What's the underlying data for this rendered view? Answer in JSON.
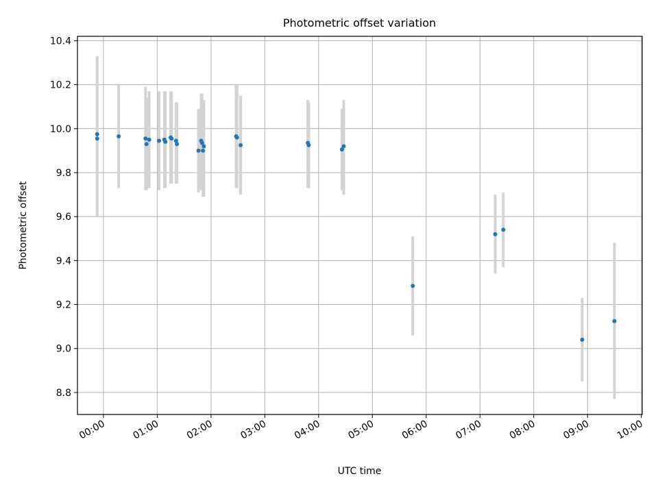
{
  "chart_data": {
    "type": "scatter",
    "title": "Photometric offset variation",
    "xlabel": "UTC time",
    "ylabel": "Photometric offset",
    "xlim": [
      "23:31",
      "10:01"
    ],
    "ylim": [
      8.7,
      10.42
    ],
    "x_ticks": [
      "00:00",
      "01:00",
      "02:00",
      "03:00",
      "04:00",
      "05:00",
      "06:00",
      "07:00",
      "08:00",
      "09:00",
      "10:00"
    ],
    "y_ticks": [
      "8.8",
      "9.0",
      "9.2",
      "9.4",
      "9.6",
      "9.8",
      "10.0",
      "10.2",
      "10.4"
    ],
    "grid": true,
    "marker_color": "#1f77b4",
    "errorbar_color": "#d3d3d3",
    "points": [
      {
        "x": "23:53",
        "y": 9.975,
        "err_low": 9.6,
        "err_high": 10.33
      },
      {
        "x": "23:53",
        "y": 9.955,
        "err_low": 9.6,
        "err_high": 10.33
      },
      {
        "x": "00:17",
        "y": 9.965,
        "err_low": 9.73,
        "err_high": 10.2
      },
      {
        "x": "00:47",
        "y": 9.955,
        "err_low": 9.72,
        "err_high": 10.19
      },
      {
        "x": "00:48",
        "y": 9.93,
        "err_low": 9.72,
        "err_high": 10.14
      },
      {
        "x": "00:51",
        "y": 9.95,
        "err_low": 9.73,
        "err_high": 10.17
      },
      {
        "x": "01:02",
        "y": 9.945,
        "err_low": 9.72,
        "err_high": 10.17
      },
      {
        "x": "01:08",
        "y": 9.95,
        "err_low": 9.73,
        "err_high": 10.17
      },
      {
        "x": "01:09",
        "y": 9.94,
        "err_low": 9.73,
        "err_high": 10.17
      },
      {
        "x": "01:15",
        "y": 9.96,
        "err_low": 9.75,
        "err_high": 10.17
      },
      {
        "x": "01:16",
        "y": 9.955,
        "err_low": 9.75,
        "err_high": 10.17
      },
      {
        "x": "01:21",
        "y": 9.945,
        "err_low": 9.75,
        "err_high": 10.12
      },
      {
        "x": "01:22",
        "y": 9.93,
        "err_low": 9.75,
        "err_high": 10.12
      },
      {
        "x": "01:46",
        "y": 9.9,
        "err_low": 9.71,
        "err_high": 10.09
      },
      {
        "x": "01:49",
        "y": 9.945,
        "err_low": 9.72,
        "err_high": 10.16
      },
      {
        "x": "01:50",
        "y": 9.935,
        "err_low": 9.72,
        "err_high": 10.16
      },
      {
        "x": "01:51",
        "y": 9.9,
        "err_low": 9.69,
        "err_high": 10.13
      },
      {
        "x": "01:52",
        "y": 9.92,
        "err_low": 9.69,
        "err_high": 10.13
      },
      {
        "x": "02:28",
        "y": 9.965,
        "err_low": 9.73,
        "err_high": 10.2
      },
      {
        "x": "02:29",
        "y": 9.96,
        "err_low": 9.73,
        "err_high": 10.2
      },
      {
        "x": "02:33",
        "y": 9.925,
        "err_low": 9.7,
        "err_high": 10.15
      },
      {
        "x": "03:48",
        "y": 9.935,
        "err_low": 9.73,
        "err_high": 10.13
      },
      {
        "x": "03:49",
        "y": 9.925,
        "err_low": 9.73,
        "err_high": 10.12
      },
      {
        "x": "04:26",
        "y": 9.905,
        "err_low": 9.72,
        "err_high": 10.09
      },
      {
        "x": "04:28",
        "y": 9.92,
        "err_low": 9.7,
        "err_high": 10.13
      },
      {
        "x": "05:45",
        "y": 9.285,
        "err_low": 9.06,
        "err_high": 9.51
      },
      {
        "x": "07:17",
        "y": 9.52,
        "err_low": 9.34,
        "err_high": 9.7
      },
      {
        "x": "07:26",
        "y": 9.54,
        "err_low": 9.37,
        "err_high": 9.71
      },
      {
        "x": "08:54",
        "y": 9.04,
        "err_low": 8.85,
        "err_high": 9.23
      },
      {
        "x": "09:30",
        "y": 9.125,
        "err_low": 8.77,
        "err_high": 9.48
      }
    ]
  }
}
